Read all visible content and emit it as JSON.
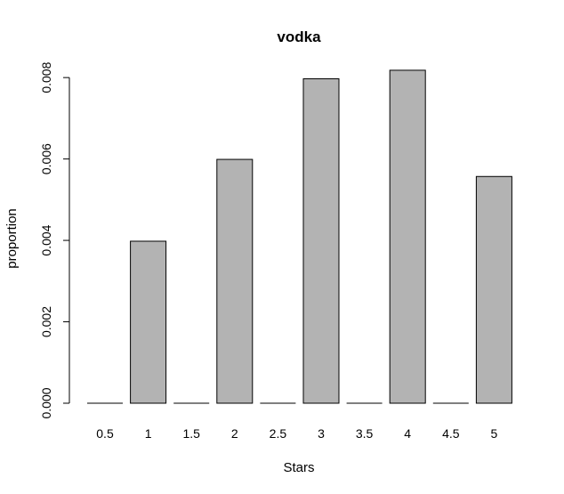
{
  "chart_data": {
    "type": "bar",
    "title": "vodka",
    "xlabel": "Stars",
    "ylabel": "proportion",
    "categories": [
      "0.5",
      "1",
      "1.5",
      "2",
      "2.5",
      "3",
      "3.5",
      "4",
      "4.5",
      "5"
    ],
    "values": [
      0.0,
      0.00398,
      0.0,
      0.00599,
      0.0,
      0.00797,
      0.0,
      0.00818,
      0.0,
      0.00557
    ],
    "ylim": [
      0,
      0.0082
    ],
    "yticks": [
      "0.000",
      "0.002",
      "0.004",
      "0.006",
      "0.008"
    ],
    "bar_color": "#b3b3b3",
    "grid": false
  }
}
